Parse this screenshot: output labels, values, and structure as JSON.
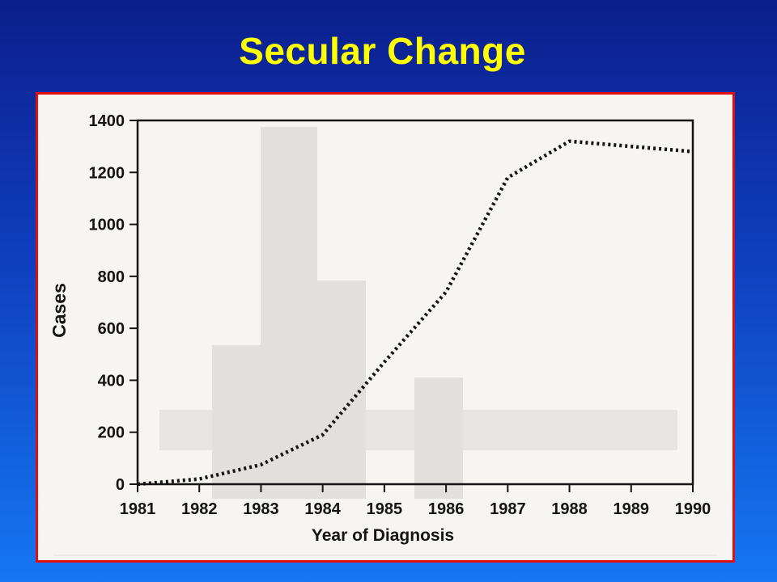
{
  "slide": {
    "title": "Secular Change"
  },
  "colors": {
    "background_top": "#0c1e8c",
    "background_bottom": "#1577f2",
    "title": "#ffff00",
    "frame_border": "#e01010",
    "ink": "#141414"
  },
  "chart_data": {
    "type": "line",
    "title": "",
    "xlabel": "Year of Diagnosis",
    "ylabel": "Cases",
    "x_ticks": [
      "1981",
      "1982",
      "1983",
      "1984",
      "1985",
      "1986",
      "1987",
      "1988",
      "1989",
      "1990"
    ],
    "y_ticks": [
      "0",
      "200",
      "400",
      "600",
      "800",
      "1000",
      "1200",
      "1400"
    ],
    "xlim": [
      1981,
      1990
    ],
    "ylim": [
      0,
      1400
    ],
    "grid": false,
    "line_style": "dotted",
    "series": [
      {
        "x": [
          1981,
          1982,
          1983,
          1984,
          1985,
          1986,
          1987,
          1988,
          1989,
          1990
        ],
        "values": [
          0,
          20,
          75,
          190,
          470,
          740,
          1180,
          1320,
          1300,
          1280
        ]
      }
    ]
  }
}
